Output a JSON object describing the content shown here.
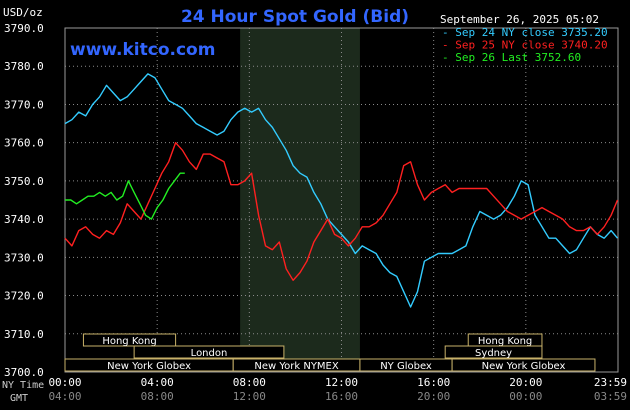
{
  "chart_data": {
    "type": "line",
    "title": "24 Hour Spot Gold (Bid)",
    "unit_label": "USD/oz",
    "watermark": "www.kitco.com",
    "timestamp": "September 26, 2025 05:02",
    "ylim": [
      3700,
      3790
    ],
    "yticks": [
      "3790.0",
      "3780.0",
      "3770.0",
      "3760.0",
      "3750.0",
      "3740.0",
      "3730.0",
      "3720.0",
      "3710.0",
      "3700.0"
    ],
    "xlim": [
      0,
      24
    ],
    "ny_label": "NY Time",
    "gmt_label": "GMT",
    "xticks_ny": [
      "00:00",
      "04:00",
      "08:00",
      "12:00",
      "16:00",
      "20:00",
      "23:59"
    ],
    "xticks_gmt": [
      "04:00",
      "08:00",
      "12:00",
      "16:00",
      "20:00",
      "00:00",
      "03:59"
    ],
    "shade_range": [
      7.6,
      12.8
    ],
    "sessions": [
      {
        "label": "Hong Kong",
        "start": 0.8,
        "end": 4.8,
        "row": 0
      },
      {
        "label": "Hong Kong",
        "start": 17.5,
        "end": 20.7,
        "row": 0
      },
      {
        "label": "London",
        "start": 3.0,
        "end": 9.5,
        "row": 1
      },
      {
        "label": "Sydney",
        "start": 16.5,
        "end": 20.7,
        "row": 1
      },
      {
        "label": "New York Globex",
        "start": 0.0,
        "end": 7.3,
        "row": 2
      },
      {
        "label": "New York NYMEX",
        "start": 7.3,
        "end": 12.8,
        "row": 2
      },
      {
        "label": "NY Globex",
        "start": 12.8,
        "end": 16.8,
        "row": 2
      },
      {
        "label": "New York Globex",
        "start": 16.8,
        "end": 23.0,
        "row": 2
      }
    ],
    "series": [
      {
        "name": "Sep 24 NY close 3735.20",
        "color": "#33ccff",
        "x": [
          0,
          0.3,
          0.6,
          0.9,
          1.2,
          1.5,
          1.8,
          2.1,
          2.4,
          2.7,
          3.0,
          3.3,
          3.6,
          3.9,
          4.2,
          4.5,
          4.8,
          5.1,
          5.4,
          5.7,
          6.0,
          6.3,
          6.6,
          6.9,
          7.2,
          7.5,
          7.8,
          8.1,
          8.4,
          8.7,
          9.0,
          9.3,
          9.6,
          9.9,
          10.2,
          10.5,
          10.8,
          11.1,
          11.4,
          11.7,
          12.0,
          12.3,
          12.6,
          12.9,
          13.2,
          13.5,
          13.8,
          14.1,
          14.4,
          14.7,
          15.0,
          15.3,
          15.6,
          15.9,
          16.2,
          16.5,
          16.8,
          17.1,
          17.4,
          17.7,
          18.0,
          18.3,
          18.6,
          18.9,
          19.2,
          19.5,
          19.8,
          20.1,
          20.4,
          20.7,
          21.0,
          21.3,
          21.6,
          21.9,
          22.2,
          22.5,
          22.8,
          23.1,
          23.4,
          23.7,
          23.98
        ],
        "values": [
          3765,
          3766,
          3768,
          3767,
          3770,
          3772,
          3775,
          3773,
          3771,
          3772,
          3774,
          3776,
          3778,
          3777,
          3774,
          3771,
          3770,
          3769,
          3767,
          3765,
          3764,
          3763,
          3762,
          3763,
          3766,
          3768,
          3769,
          3768,
          3769,
          3766,
          3764,
          3761,
          3758,
          3754,
          3752,
          3751,
          3747,
          3744,
          3740,
          3738,
          3736,
          3734,
          3731,
          3733,
          3732,
          3731,
          3728,
          3726,
          3725,
          3721,
          3717,
          3721,
          3729,
          3730,
          3731,
          3731,
          3731,
          3732,
          3733,
          3738,
          3742,
          3741,
          3740,
          3741,
          3743,
          3746,
          3750,
          3749,
          3741,
          3738,
          3735,
          3735,
          3733,
          3731,
          3732,
          3735,
          3738,
          3736,
          3735,
          3737,
          3735
        ]
      },
      {
        "name": "Sep 25 NY close 3740.20",
        "color": "#ff2020",
        "x": [
          0,
          0.3,
          0.6,
          0.9,
          1.2,
          1.5,
          1.8,
          2.1,
          2.4,
          2.7,
          3.0,
          3.3,
          3.6,
          3.9,
          4.2,
          4.5,
          4.8,
          5.1,
          5.4,
          5.7,
          6.0,
          6.3,
          6.6,
          6.9,
          7.2,
          7.5,
          7.8,
          8.1,
          8.4,
          8.7,
          9.0,
          9.3,
          9.6,
          9.9,
          10.2,
          10.5,
          10.8,
          11.1,
          11.4,
          11.7,
          12.0,
          12.3,
          12.6,
          12.9,
          13.2,
          13.5,
          13.8,
          14.1,
          14.4,
          14.7,
          15.0,
          15.3,
          15.6,
          15.9,
          16.2,
          16.5,
          16.8,
          17.1,
          17.4,
          17.7,
          18.0,
          18.3,
          18.6,
          18.9,
          19.2,
          19.5,
          19.8,
          20.1,
          20.4,
          20.7,
          21.0,
          21.3,
          21.6,
          21.9,
          22.2,
          22.5,
          22.8,
          23.1,
          23.4,
          23.7,
          23.98
        ],
        "values": [
          3735,
          3733,
          3737,
          3738,
          3736,
          3735,
          3737,
          3736,
          3739,
          3744,
          3742,
          3740,
          3744,
          3748,
          3752,
          3755,
          3760,
          3758,
          3755,
          3753,
          3757,
          3757,
          3756,
          3755,
          3749,
          3749,
          3750,
          3752,
          3741,
          3733,
          3732,
          3734,
          3727,
          3724,
          3726,
          3729,
          3734,
          3737,
          3740,
          3736,
          3735,
          3733,
          3735,
          3738,
          3738,
          3739,
          3741,
          3744,
          3747,
          3754,
          3755,
          3749,
          3745,
          3747,
          3748,
          3749,
          3747,
          3748,
          3748,
          3748,
          3748,
          3748,
          3746,
          3744,
          3742,
          3741,
          3740,
          3741,
          3742,
          3743,
          3742,
          3741,
          3740,
          3738,
          3737,
          3737,
          3738,
          3736,
          3738,
          3741,
          3745
        ]
      },
      {
        "name": "Sep 26 Last 3752.60",
        "color": "#22ee22",
        "x": [
          0,
          0.25,
          0.5,
          0.75,
          1.0,
          1.25,
          1.5,
          1.75,
          2.0,
          2.25,
          2.5,
          2.75,
          3.0,
          3.25,
          3.5,
          3.75,
          4.0,
          4.25,
          4.5,
          4.75,
          5.0,
          5.2
        ],
        "values": [
          3745,
          3745,
          3744,
          3745,
          3746,
          3746,
          3747,
          3746,
          3747,
          3745,
          3746,
          3750,
          3747,
          3744,
          3741,
          3740,
          3743,
          3745,
          3748,
          3750,
          3752,
          3752
        ]
      }
    ]
  }
}
